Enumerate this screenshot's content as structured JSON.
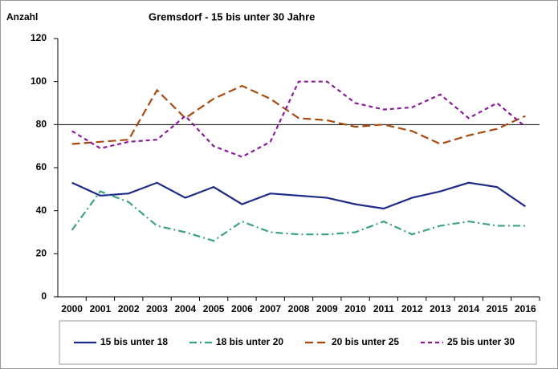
{
  "chart_data": {
    "type": "line",
    "title": "Gremsdorf - 15 bis unter 30 Jahre",
    "y_label": "Anzahl",
    "categories": [
      "2000",
      "2001",
      "2002",
      "2003",
      "2004",
      "2005",
      "2006",
      "2007",
      "2008",
      "2009",
      "2010",
      "2011",
      "2012",
      "2013",
      "2014",
      "2015",
      "2016"
    ],
    "series": [
      {
        "name": "15 bis unter 18",
        "color": "#1f2a8a",
        "dash": "",
        "values": [
          53,
          47,
          48,
          53,
          46,
          51,
          43,
          48,
          47,
          46,
          43,
          41,
          46,
          49,
          53,
          51,
          42
        ]
      },
      {
        "name": "18 bis unter 20",
        "color": "#3aa37a",
        "dash": "9 4 2 4",
        "values": [
          31,
          49,
          44,
          33,
          30,
          26,
          35,
          30,
          29,
          29,
          30,
          35,
          29,
          33,
          35,
          33,
          33
        ]
      },
      {
        "name": "20 bis unter 25",
        "color": "#a84a10",
        "dash": "10 5",
        "values": [
          71,
          72,
          73,
          96,
          83,
          92,
          98,
          92,
          83,
          82,
          79,
          80,
          77,
          71,
          75,
          78,
          84
        ]
      },
      {
        "name": "25 bis unter 30",
        "color": "#8b1a9b",
        "dash": "5 4",
        "values": [
          77,
          69,
          72,
          73,
          84,
          70,
          65,
          72,
          100,
          100,
          90,
          87,
          88,
          94,
          83,
          90,
          79
        ]
      }
    ],
    "reference_line": 80,
    "ylim": [
      0,
      120
    ],
    "yticks": [
      0,
      20,
      40,
      60,
      80,
      100,
      120
    ]
  }
}
